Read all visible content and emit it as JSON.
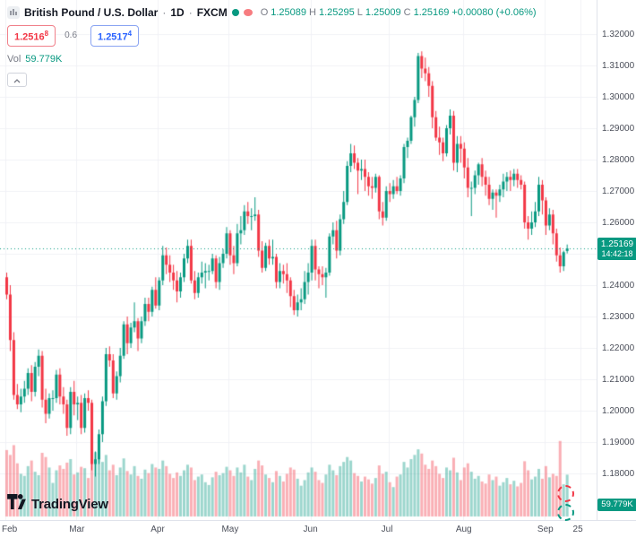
{
  "header": {
    "title": "British Pound / U.S. Dollar",
    "separator": "·",
    "interval": "1D",
    "exchange": "FXCM",
    "ohlc": {
      "o_label": "O",
      "o": "1.25089",
      "h_label": "H",
      "h": "1.25295",
      "l_label": "L",
      "l": "1.25009",
      "c_label": "C",
      "c": "1.25169",
      "change": "+0.00080 (+0.06%)"
    }
  },
  "quote_panel": {
    "bid": "1.2516",
    "bid_sup": "8",
    "spread": "0.6",
    "ask": "1.2517",
    "ask_sup": "4"
  },
  "volume_row": {
    "label": "Vol",
    "value": "59.779K"
  },
  "price_axis": {
    "current_badge": {
      "price": "1.25169",
      "countdown": "14:42:18"
    },
    "volume_badge": "59.779K"
  },
  "logo": {
    "text": "TradingView"
  },
  "chart_data": {
    "type": "candlestick",
    "title": "British Pound / U.S. Dollar",
    "interval": "1D",
    "exchange": "FXCM",
    "ylim": [
      1.18,
      1.32
    ],
    "y_step": 0.01,
    "current_price": 1.25169,
    "y_labels": [
      "1.32000",
      "1.31000",
      "1.30000",
      "1.29000",
      "1.28000",
      "1.27000",
      "1.26000",
      "1.25000",
      "1.24000",
      "1.23000",
      "1.22000",
      "1.21000",
      "1.20000",
      "1.19000",
      "1.18000"
    ],
    "x_labels": [
      {
        "label": "Feb",
        "i": 0
      },
      {
        "label": "Mar",
        "i": 20
      },
      {
        "label": "Apr",
        "i": 43
      },
      {
        "label": "May",
        "i": 63
      },
      {
        "label": "Jun",
        "i": 86
      },
      {
        "label": "Jul",
        "i": 108
      },
      {
        "label": "Aug",
        "i": 129
      },
      {
        "label": "Sep",
        "i": 152
      },
      {
        "label": "25",
        "i": 162
      }
    ],
    "colors": {
      "up": "#089981",
      "down": "#f23645",
      "up_vol": "rgba(8,153,129,0.40)",
      "down_vol": "rgba(242,54,69,0.40)",
      "grid": "#f0f2f6",
      "price_line": "#089981"
    },
    "candles": [
      [
        1.2425,
        1.244,
        1.2355,
        1.237
      ],
      [
        1.237,
        1.24,
        1.219,
        1.2225
      ],
      [
        1.2225,
        1.225,
        1.2035,
        1.205
      ],
      [
        1.205,
        1.2085,
        1.2005,
        1.202
      ],
      [
        1.202,
        1.207,
        1.1995,
        1.2045
      ],
      [
        1.2045,
        1.2095,
        1.2025,
        1.207
      ],
      [
        1.207,
        1.2135,
        1.205,
        1.212
      ],
      [
        1.212,
        1.2145,
        1.203,
        1.206
      ],
      [
        1.206,
        1.2155,
        1.2045,
        1.214
      ],
      [
        1.214,
        1.2195,
        1.211,
        1.2175
      ],
      [
        1.2175,
        1.219,
        1.201,
        1.2035
      ],
      [
        1.2035,
        1.207,
        1.196,
        1.199
      ],
      [
        1.199,
        1.2055,
        1.1975,
        1.204
      ],
      [
        1.204,
        1.2065,
        1.2,
        1.204
      ],
      [
        1.204,
        1.213,
        1.2025,
        1.2115
      ],
      [
        1.2115,
        1.2135,
        1.202,
        1.2045
      ],
      [
        1.2045,
        1.2075,
        1.199,
        1.202
      ],
      [
        1.202,
        1.2035,
        1.192,
        1.1945
      ],
      [
        1.1945,
        1.2075,
        1.1925,
        1.206
      ],
      [
        1.206,
        1.2095,
        1.1985,
        1.202
      ],
      [
        1.202,
        1.2045,
        1.197,
        1.2025
      ],
      [
        1.2025,
        1.205,
        1.1925,
        1.1945
      ],
      [
        1.1945,
        1.2055,
        1.193,
        1.204
      ],
      [
        1.204,
        1.2065,
        1.2,
        1.2025
      ],
      [
        1.2025,
        1.2035,
        1.181,
        1.183
      ],
      [
        1.183,
        1.187,
        1.179,
        1.1845
      ],
      [
        1.1845,
        1.194,
        1.183,
        1.1925
      ],
      [
        1.1925,
        1.2045,
        1.19,
        1.203
      ],
      [
        1.203,
        1.22,
        1.2015,
        1.218
      ],
      [
        1.218,
        1.2205,
        1.214,
        1.216
      ],
      [
        1.216,
        1.218,
        1.204,
        1.2055
      ],
      [
        1.2055,
        1.2125,
        1.2035,
        1.211
      ],
      [
        1.211,
        1.22,
        1.209,
        1.2175
      ],
      [
        1.2175,
        1.2285,
        1.2165,
        1.2275
      ],
      [
        1.2275,
        1.23,
        1.218,
        1.2215
      ],
      [
        1.2215,
        1.228,
        1.22,
        1.2265
      ],
      [
        1.2265,
        1.2345,
        1.225,
        1.2285
      ],
      [
        1.2285,
        1.2295,
        1.219,
        1.223
      ],
      [
        1.223,
        1.23,
        1.2215,
        1.2285
      ],
      [
        1.2285,
        1.236,
        1.227,
        1.234
      ],
      [
        1.234,
        1.236,
        1.2285,
        1.2315
      ],
      [
        1.2315,
        1.2395,
        1.23,
        1.2385
      ],
      [
        1.2385,
        1.2425,
        1.2325,
        1.2335
      ],
      [
        1.2335,
        1.2425,
        1.232,
        1.2415
      ],
      [
        1.2415,
        1.2525,
        1.24,
        1.2495
      ],
      [
        1.2495,
        1.252,
        1.2435,
        1.2465
      ],
      [
        1.2465,
        1.2495,
        1.241,
        1.244
      ],
      [
        1.244,
        1.2465,
        1.2385,
        1.2415
      ],
      [
        1.2415,
        1.2445,
        1.2345,
        1.238
      ],
      [
        1.238,
        1.244,
        1.236,
        1.2425
      ],
      [
        1.2425,
        1.25,
        1.241,
        1.2485
      ],
      [
        1.2485,
        1.2545,
        1.247,
        1.2525
      ],
      [
        1.2525,
        1.2545,
        1.2405,
        1.2415
      ],
      [
        1.2415,
        1.2445,
        1.2355,
        1.2375
      ],
      [
        1.2375,
        1.244,
        1.236,
        1.2425
      ],
      [
        1.2425,
        1.2475,
        1.2405,
        1.244
      ],
      [
        1.244,
        1.247,
        1.239,
        1.2445
      ],
      [
        1.2445,
        1.2465,
        1.2415,
        1.2445
      ],
      [
        1.2445,
        1.25,
        1.2435,
        1.2485
      ],
      [
        1.2485,
        1.2495,
        1.239,
        1.241
      ],
      [
        1.241,
        1.249,
        1.2385,
        1.247
      ],
      [
        1.247,
        1.2515,
        1.2455,
        1.25
      ],
      [
        1.25,
        1.2585,
        1.2485,
        1.2565
      ],
      [
        1.2565,
        1.2575,
        1.2465,
        1.2495
      ],
      [
        1.2495,
        1.2525,
        1.2435,
        1.247
      ],
      [
        1.247,
        1.2595,
        1.246,
        1.2565
      ],
      [
        1.2565,
        1.262,
        1.253,
        1.2575
      ],
      [
        1.2575,
        1.2655,
        1.256,
        1.2635
      ],
      [
        1.2635,
        1.2665,
        1.2595,
        1.262
      ],
      [
        1.262,
        1.2645,
        1.2575,
        1.262
      ],
      [
        1.262,
        1.268,
        1.2605,
        1.2625
      ],
      [
        1.2625,
        1.264,
        1.249,
        1.251
      ],
      [
        1.251,
        1.254,
        1.244,
        1.2455
      ],
      [
        1.2455,
        1.2535,
        1.2445,
        1.2525
      ],
      [
        1.2525,
        1.2545,
        1.2465,
        1.2485
      ],
      [
        1.2485,
        1.2545,
        1.2465,
        1.249
      ],
      [
        1.249,
        1.25,
        1.239,
        1.241
      ],
      [
        1.241,
        1.247,
        1.239,
        1.2445
      ],
      [
        1.2445,
        1.2465,
        1.2405,
        1.2435
      ],
      [
        1.2435,
        1.247,
        1.2375,
        1.2415
      ],
      [
        1.2415,
        1.2425,
        1.233,
        1.2365
      ],
      [
        1.2365,
        1.2385,
        1.2305,
        1.232
      ],
      [
        1.232,
        1.237,
        1.23,
        1.2345
      ],
      [
        1.2345,
        1.239,
        1.232,
        1.2355
      ],
      [
        1.2355,
        1.2445,
        1.234,
        1.241
      ],
      [
        1.241,
        1.247,
        1.237,
        1.244
      ],
      [
        1.244,
        1.2545,
        1.2415,
        1.2525
      ],
      [
        1.2525,
        1.2545,
        1.2415,
        1.245
      ],
      [
        1.245,
        1.246,
        1.239,
        1.2435
      ],
      [
        1.2435,
        1.246,
        1.24,
        1.2425
      ],
      [
        1.2425,
        1.2455,
        1.236,
        1.244
      ],
      [
        1.244,
        1.2565,
        1.243,
        1.2555
      ],
      [
        1.2555,
        1.26,
        1.253,
        1.2575
      ],
      [
        1.2575,
        1.2605,
        1.2485,
        1.251
      ],
      [
        1.251,
        1.2625,
        1.2495,
        1.261
      ],
      [
        1.261,
        1.27,
        1.2595,
        1.2665
      ],
      [
        1.2665,
        1.2795,
        1.2655,
        1.278
      ],
      [
        1.278,
        1.285,
        1.276,
        1.282
      ],
      [
        1.282,
        1.2845,
        1.277,
        1.279
      ],
      [
        1.279,
        1.2805,
        1.269,
        1.2765
      ],
      [
        1.2765,
        1.28,
        1.2735,
        1.277
      ],
      [
        1.277,
        1.28,
        1.27,
        1.2745
      ],
      [
        1.2745,
        1.276,
        1.2685,
        1.2715
      ],
      [
        1.2715,
        1.2745,
        1.2675,
        1.271
      ],
      [
        1.271,
        1.2755,
        1.2695,
        1.2745
      ],
      [
        1.2745,
        1.275,
        1.261,
        1.2635
      ],
      [
        1.2635,
        1.2665,
        1.259,
        1.2615
      ],
      [
        1.2615,
        1.2715,
        1.2605,
        1.27
      ],
      [
        1.27,
        1.2725,
        1.2665,
        1.269
      ],
      [
        1.269,
        1.2735,
        1.2675,
        1.2715
      ],
      [
        1.2715,
        1.2745,
        1.269,
        1.27
      ],
      [
        1.27,
        1.275,
        1.2685,
        1.274
      ],
      [
        1.274,
        1.285,
        1.2725,
        1.284
      ],
      [
        1.284,
        1.287,
        1.2805,
        1.286
      ],
      [
        1.286,
        1.294,
        1.285,
        1.2935
      ],
      [
        1.2935,
        1.3,
        1.2905,
        1.299
      ],
      [
        1.299,
        1.314,
        1.298,
        1.313
      ],
      [
        1.313,
        1.3145,
        1.306,
        1.309
      ],
      [
        1.309,
        1.3125,
        1.305,
        1.3075
      ],
      [
        1.3075,
        1.3095,
        1.3,
        1.3035
      ],
      [
        1.3035,
        1.305,
        1.29,
        1.2935
      ],
      [
        1.2935,
        1.2955,
        1.286,
        1.287
      ],
      [
        1.287,
        1.2905,
        1.2815,
        1.2855
      ],
      [
        1.2855,
        1.287,
        1.2795,
        1.282
      ],
      [
        1.282,
        1.291,
        1.281,
        1.29
      ],
      [
        1.29,
        1.296,
        1.288,
        1.294
      ],
      [
        1.294,
        1.2955,
        1.2765,
        1.279
      ],
      [
        1.279,
        1.2875,
        1.276,
        1.285
      ],
      [
        1.285,
        1.2875,
        1.279,
        1.2835
      ],
      [
        1.2835,
        1.2855,
        1.274,
        1.2775
      ],
      [
        1.2775,
        1.2805,
        1.268,
        1.271
      ],
      [
        1.271,
        1.273,
        1.262,
        1.271
      ],
      [
        1.271,
        1.2765,
        1.269,
        1.275
      ],
      [
        1.275,
        1.279,
        1.272,
        1.2785
      ],
      [
        1.2785,
        1.2805,
        1.2715,
        1.2745
      ],
      [
        1.2745,
        1.2765,
        1.2685,
        1.272
      ],
      [
        1.272,
        1.2745,
        1.2655,
        1.2675
      ],
      [
        1.2675,
        1.2705,
        1.264,
        1.2695
      ],
      [
        1.2695,
        1.2705,
        1.2615,
        1.2685
      ],
      [
        1.2685,
        1.272,
        1.2665,
        1.2705
      ],
      [
        1.2705,
        1.2755,
        1.268,
        1.273
      ],
      [
        1.273,
        1.276,
        1.27,
        1.2745
      ],
      [
        1.2745,
        1.2765,
        1.27,
        1.2735
      ],
      [
        1.2735,
        1.277,
        1.2715,
        1.2755
      ],
      [
        1.2755,
        1.277,
        1.271,
        1.2735
      ],
      [
        1.2735,
        1.275,
        1.2705,
        1.272
      ],
      [
        1.272,
        1.273,
        1.258,
        1.26
      ],
      [
        1.26,
        1.262,
        1.2545,
        1.258
      ],
      [
        1.258,
        1.2635,
        1.256,
        1.26
      ],
      [
        1.26,
        1.2665,
        1.2585,
        1.2635
      ],
      [
        1.2635,
        1.2745,
        1.262,
        1.272
      ],
      [
        1.272,
        1.2735,
        1.2625,
        1.267
      ],
      [
        1.267,
        1.268,
        1.256,
        1.259
      ],
      [
        1.259,
        1.2645,
        1.2575,
        1.2625
      ],
      [
        1.2625,
        1.264,
        1.253,
        1.2565
      ],
      [
        1.2565,
        1.258,
        1.2475,
        1.2495
      ],
      [
        1.2495,
        1.252,
        1.244,
        1.246
      ],
      [
        1.246,
        1.251,
        1.2445,
        1.2505
      ],
      [
        1.25089,
        1.25295,
        1.25009,
        1.25169
      ]
    ],
    "volumes": [
      95,
      88,
      102,
      76,
      61,
      58,
      72,
      80,
      64,
      59,
      91,
      85,
      70,
      48,
      66,
      73,
      68,
      77,
      82,
      60,
      63,
      71,
      69,
      55,
      98,
      92,
      84,
      78,
      88,
      66,
      74,
      59,
      70,
      83,
      65,
      60,
      72,
      58,
      54,
      67,
      62,
      75,
      70,
      68,
      80,
      72,
      61,
      55,
      63,
      58,
      66,
      74,
      70,
      52,
      57,
      60,
      49,
      45,
      56,
      64,
      59,
      62,
      71,
      66,
      58,
      70,
      63,
      74,
      57,
      52,
      68,
      80,
      73,
      60,
      55,
      49,
      65,
      58,
      50,
      61,
      70,
      67,
      54,
      44,
      52,
      63,
      70,
      64,
      52,
      48,
      60,
      74,
      66,
      59,
      72,
      78,
      85,
      80,
      62,
      58,
      50,
      57,
      53,
      47,
      55,
      73,
      61,
      64,
      49,
      42,
      57,
      60,
      78,
      70,
      82,
      88,
      96,
      90,
      74,
      68,
      80,
      72,
      61,
      55,
      70,
      66,
      84,
      63,
      52,
      70,
      76,
      64,
      54,
      58,
      50,
      47,
      60,
      52,
      57,
      44,
      49,
      55,
      46,
      51,
      43,
      48,
      79,
      66,
      53,
      57,
      68,
      54,
      72,
      56,
      61,
      58,
      108,
      46,
      59.779
    ]
  }
}
